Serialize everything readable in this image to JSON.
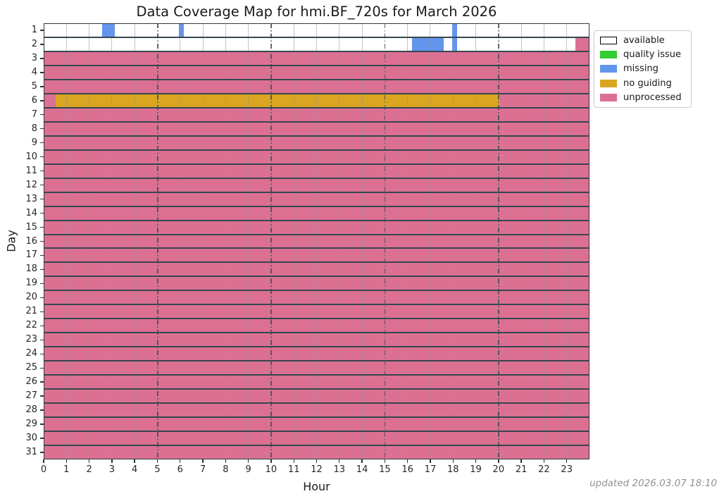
{
  "title": "Data Coverage Map for hmi.BF_720s for March 2026",
  "footer": "updated 2026.03.07 18:10",
  "legend": [
    {
      "label": "available",
      "color": "#ffffff",
      "edge": "#000000"
    },
    {
      "label": "quality issue",
      "color": "#32cd32",
      "edge": "#32cd32"
    },
    {
      "label": "missing",
      "color": "#6495ed",
      "edge": "#6495ed"
    },
    {
      "label": "no guiding",
      "color": "#daa520",
      "edge": "#daa520"
    },
    {
      "label": "unprocessed",
      "color": "#db7093",
      "edge": "#db7093"
    }
  ],
  "chart_data": {
    "type": "heatmap",
    "title": "Data Coverage Map for hmi.BF_720s for March 2026",
    "xlabel": "Hour",
    "ylabel": "Day",
    "x_range": [
      0,
      24
    ],
    "hour_ticks": [
      "0",
      "1",
      "2",
      "3",
      "4",
      "5",
      "6",
      "7",
      "8",
      "9",
      "10",
      "11",
      "12",
      "13",
      "14",
      "15",
      "16",
      "17",
      "18",
      "19",
      "20",
      "21",
      "22",
      "23"
    ],
    "day_ticks": [
      "1",
      "2",
      "3",
      "4",
      "5",
      "6",
      "7",
      "8",
      "9",
      "10",
      "11",
      "12",
      "13",
      "14",
      "15",
      "16",
      "17",
      "18",
      "19",
      "20",
      "21",
      "22",
      "23",
      "24",
      "25",
      "26",
      "27",
      "28",
      "29",
      "30",
      "31"
    ],
    "major_grid_hours": [
      5,
      10,
      15,
      20
    ],
    "grid": true,
    "legend_position": "upper-right-outside",
    "colors": {
      "available": "#ffffff",
      "quality issue": "#32cd32",
      "missing": "#6495ed",
      "no guiding": "#daa520",
      "unprocessed": "#db7093"
    },
    "rows": [
      {
        "day": 1,
        "base": "available",
        "segments": [
          {
            "status": "missing",
            "start": 2.57,
            "end": 3.13
          },
          {
            "status": "missing",
            "start": 5.95,
            "end": 6.17
          },
          {
            "status": "missing",
            "start": 17.97,
            "end": 18.18
          }
        ]
      },
      {
        "day": 2,
        "base": "available",
        "segments": [
          {
            "status": "missing",
            "start": 16.19,
            "end": 17.59
          },
          {
            "status": "missing",
            "start": 17.97,
            "end": 18.18
          },
          {
            "status": "unprocessed",
            "start": 23.38,
            "end": 24
          }
        ]
      },
      {
        "day": 3,
        "base": "unprocessed",
        "segments": []
      },
      {
        "day": 4,
        "base": "unprocessed",
        "segments": []
      },
      {
        "day": 5,
        "base": "unprocessed",
        "segments": []
      },
      {
        "day": 6,
        "base": "unprocessed",
        "segments": [
          {
            "status": "no guiding",
            "start": 0.53,
            "end": 20.08
          }
        ]
      },
      {
        "day": 7,
        "base": "unprocessed",
        "segments": []
      },
      {
        "day": 8,
        "base": "unprocessed",
        "segments": []
      },
      {
        "day": 9,
        "base": "unprocessed",
        "segments": []
      },
      {
        "day": 10,
        "base": "unprocessed",
        "segments": []
      },
      {
        "day": 11,
        "base": "unprocessed",
        "segments": []
      },
      {
        "day": 12,
        "base": "unprocessed",
        "segments": []
      },
      {
        "day": 13,
        "base": "unprocessed",
        "segments": []
      },
      {
        "day": 14,
        "base": "unprocessed",
        "segments": []
      },
      {
        "day": 15,
        "base": "unprocessed",
        "segments": []
      },
      {
        "day": 16,
        "base": "unprocessed",
        "segments": []
      },
      {
        "day": 17,
        "base": "unprocessed",
        "segments": []
      },
      {
        "day": 18,
        "base": "unprocessed",
        "segments": []
      },
      {
        "day": 19,
        "base": "unprocessed",
        "segments": []
      },
      {
        "day": 20,
        "base": "unprocessed",
        "segments": []
      },
      {
        "day": 21,
        "base": "unprocessed",
        "segments": []
      },
      {
        "day": 22,
        "base": "unprocessed",
        "segments": []
      },
      {
        "day": 23,
        "base": "unprocessed",
        "segments": []
      },
      {
        "day": 24,
        "base": "unprocessed",
        "segments": []
      },
      {
        "day": 25,
        "base": "unprocessed",
        "segments": []
      },
      {
        "day": 26,
        "base": "unprocessed",
        "segments": []
      },
      {
        "day": 27,
        "base": "unprocessed",
        "segments": []
      },
      {
        "day": 28,
        "base": "unprocessed",
        "segments": []
      },
      {
        "day": 29,
        "base": "unprocessed",
        "segments": []
      },
      {
        "day": 30,
        "base": "unprocessed",
        "segments": []
      },
      {
        "day": 31,
        "base": "unprocessed",
        "segments": []
      }
    ]
  }
}
